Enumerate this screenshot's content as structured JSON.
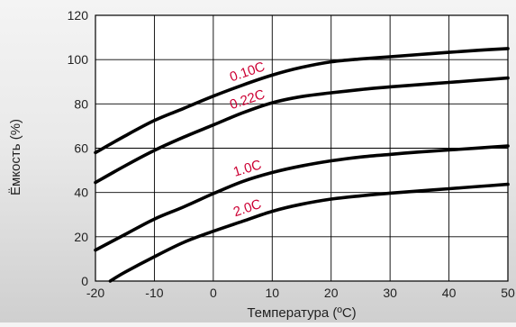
{
  "chart_data": {
    "type": "line",
    "xlabel": "Температура (ºC)",
    "ylabel": "Ёмкость (%)",
    "xlim": [
      -20,
      50
    ],
    "ylim": [
      0,
      120
    ],
    "xticks": [
      -20,
      -10,
      0,
      10,
      20,
      30,
      40,
      50
    ],
    "yticks": [
      0,
      20,
      40,
      60,
      80,
      100,
      120
    ],
    "grid": true,
    "series": [
      {
        "name": "0.10C",
        "color": "#000000",
        "label_color": "#cc0033",
        "x": [
          -20,
          -15,
          -10,
          -5,
          0,
          5,
          10,
          15,
          20,
          25,
          30,
          35,
          40,
          45,
          50
        ],
        "y": [
          58,
          65.5,
          72.5,
          78,
          83.5,
          88.5,
          93,
          96.5,
          99,
          100.3,
          101.3,
          102.3,
          103.3,
          104.2,
          105
        ]
      },
      {
        "name": "0.22C",
        "color": "#000000",
        "label_color": "#cc0033",
        "x": [
          -20,
          -15,
          -10,
          -5,
          0,
          5,
          10,
          15,
          20,
          25,
          30,
          35,
          40,
          45,
          50
        ],
        "y": [
          44.5,
          52,
          59,
          65,
          70.5,
          76,
          80.5,
          83.3,
          85,
          86.5,
          87.7,
          88.7,
          89.7,
          90.7,
          91.7
        ]
      },
      {
        "name": "1.0C",
        "color": "#000000",
        "label_color": "#cc0033",
        "x": [
          -20,
          -15,
          -10,
          -5,
          0,
          5,
          10,
          15,
          20,
          25,
          30,
          35,
          40,
          45,
          50
        ],
        "y": [
          14,
          21,
          28,
          33.5,
          39.5,
          45,
          49,
          52,
          54.3,
          56,
          57.2,
          58.3,
          59.2,
          60.1,
          61
        ]
      },
      {
        "name": "2.0C",
        "color": "#000000",
        "label_color": "#cc0033",
        "x": [
          -17.5,
          -15,
          -10,
          -5,
          0,
          5,
          10,
          15,
          20,
          25,
          30,
          35,
          40,
          45,
          50
        ],
        "y": [
          0,
          4,
          11,
          17.5,
          22.5,
          27,
          31.5,
          34.7,
          37,
          38.5,
          39.7,
          40.7,
          41.7,
          42.7,
          43.7
        ]
      }
    ]
  }
}
